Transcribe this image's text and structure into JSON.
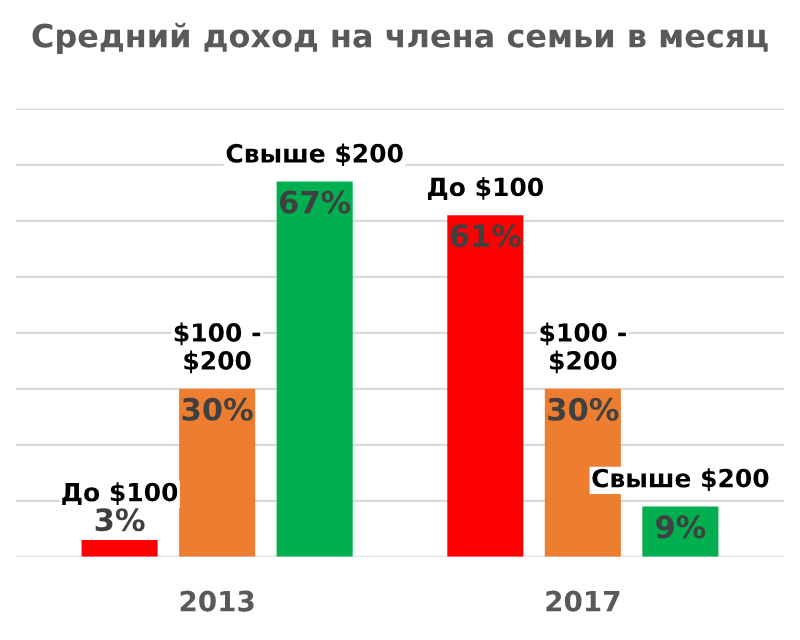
{
  "chart_data": {
    "type": "bar",
    "title": "Средний доход на члена семьи в месяц",
    "categories": [
      "2013",
      "2017"
    ],
    "series": [
      {
        "color": "#ff0000",
        "values": [
          3,
          61
        ],
        "value_labels": [
          "3%",
          "61%"
        ]
      },
      {
        "color": "#ed7d31",
        "values": [
          30,
          30
        ],
        "value_labels": [
          "30%",
          "30%"
        ]
      },
      {
        "color": "#00b050",
        "values": [
          67,
          9
        ],
        "value_labels": [
          "67%",
          "9%"
        ]
      }
    ],
    "annotations": [
      "До $100",
      "$100 -\n$200",
      "Свыше $200",
      "До $100",
      "$100 -\n$200",
      "Свыше $200"
    ],
    "ylim": [
      0,
      80
    ],
    "yticks": [
      {
        "value": 0,
        "label": null
      },
      {
        "value": 10,
        "label": null
      },
      {
        "value": 20,
        "label": null
      },
      {
        "value": 30,
        "label": null
      },
      {
        "value": 40,
        "label": null
      },
      {
        "value": 50,
        "label": null
      },
      {
        "value": 60,
        "label": null
      },
      {
        "value": 70,
        "label": null
      },
      {
        "value": 80,
        "label": null
      }
    ],
    "grid": "y",
    "legend": false,
    "tick_labels": "x"
  }
}
